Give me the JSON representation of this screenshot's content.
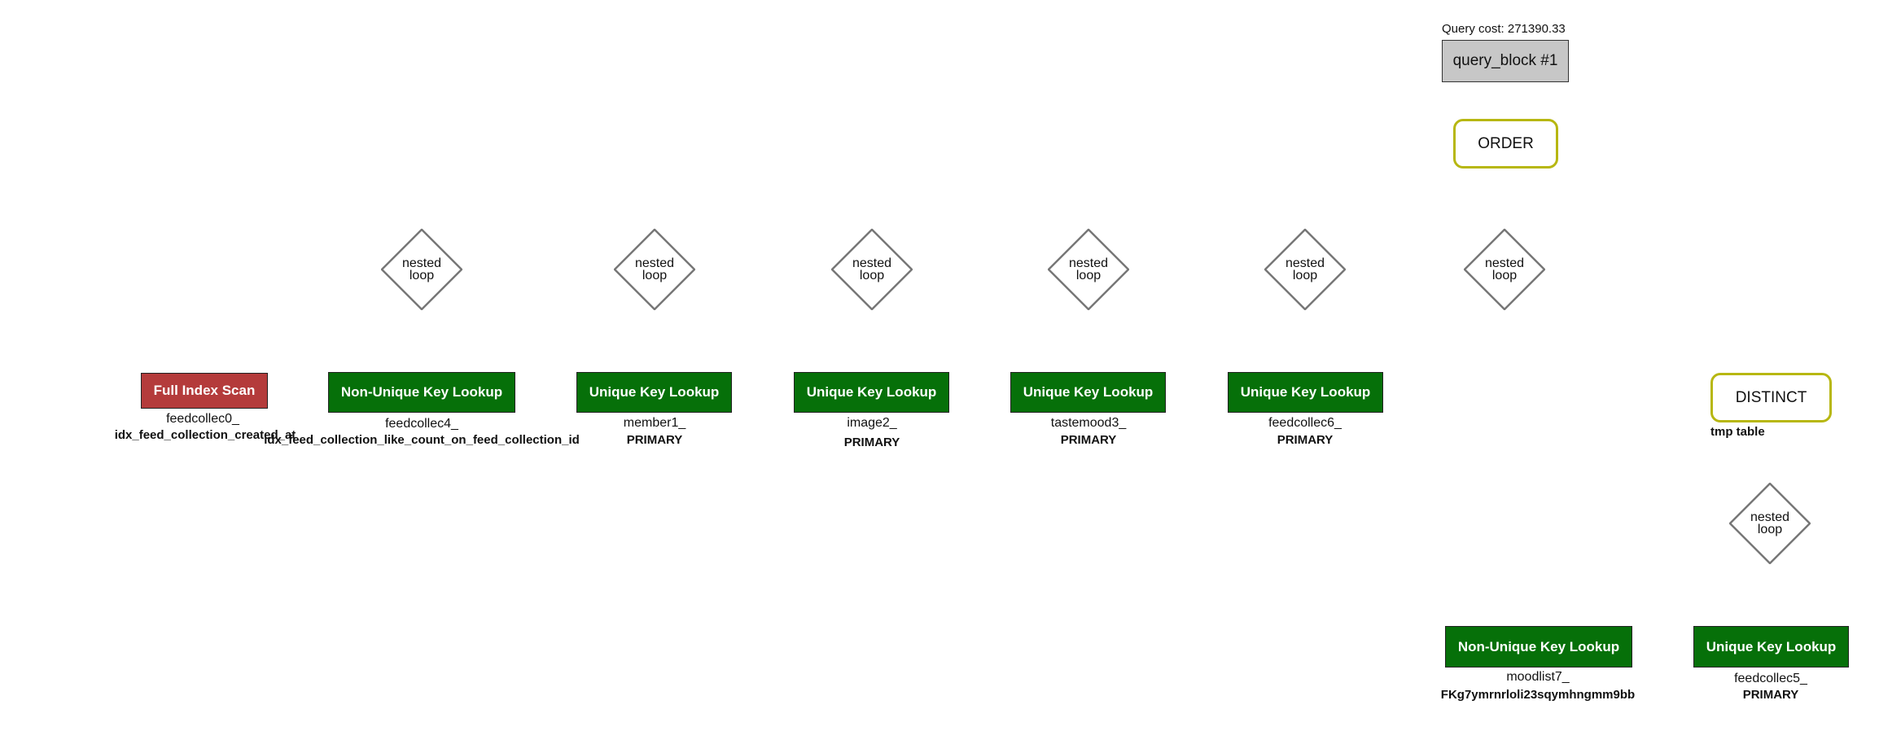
{
  "query_cost": "Query cost: 271390.33",
  "query_block": "query_block #1",
  "order": "ORDER",
  "distinct": "DISTINCT",
  "tmp_table": "tmp table",
  "nested_loop": {
    "line1": "nested",
    "line2": "loop"
  },
  "access": [
    {
      "type": "Full Index Scan",
      "table": "feedcollec0_",
      "key": "idx_feed_collection_created_at",
      "color": "#b43b3b"
    },
    {
      "type": "Non-Unique Key Lookup",
      "table": "feedcollec4_",
      "key": "idx_feed_collection_like_count_on_feed_collection_id",
      "color": "#067009"
    },
    {
      "type": "Unique Key Lookup",
      "table": "member1_",
      "key": "PRIMARY",
      "color": "#067009"
    },
    {
      "type": "Unique Key Lookup",
      "table": "image2_",
      "key": "PRIMARY",
      "color": "#067009"
    },
    {
      "type": "Unique Key Lookup",
      "table": "tastemood3_",
      "key": "PRIMARY",
      "color": "#067009"
    },
    {
      "type": "Unique Key Lookup",
      "table": "feedcollec6_",
      "key": "PRIMARY",
      "color": "#067009"
    },
    {
      "type": "Non-Unique Key Lookup",
      "table": "moodlist7_",
      "key": "FKg7ymrnrloli23sqymhngmm9bb",
      "color": "#067009"
    },
    {
      "type": "Unique Key Lookup",
      "table": "feedcollec5_",
      "key": "PRIMARY",
      "color": "#067009"
    }
  ]
}
